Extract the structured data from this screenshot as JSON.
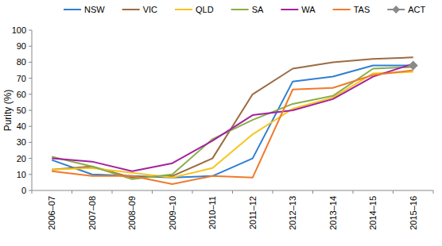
{
  "chart_data": {
    "type": "line",
    "y_label": "Purity (%)",
    "categories": [
      "2006–07",
      "2007–08",
      "2008–09",
      "2009–10",
      "2010–11",
      "2011–12",
      "2012–13",
      "2013–14",
      "2014–15",
      "2015–16"
    ],
    "series": [
      {
        "name": "NSW",
        "color": "#2e7fd4",
        "values": [
          19,
          10,
          9,
          8,
          9,
          20,
          68,
          71,
          78,
          78
        ]
      },
      {
        "name": "VIC",
        "color": "#9c6b43",
        "values": [
          13,
          15,
          8,
          9,
          20,
          60,
          76,
          80,
          82,
          83
        ]
      },
      {
        "name": "QLD",
        "color": "#f7c51b",
        "values": [
          13,
          14,
          11,
          8,
          14,
          35,
          51,
          58,
          73,
          74
        ]
      },
      {
        "name": "SA",
        "color": "#8aae47",
        "values": [
          21,
          15,
          7,
          10,
          32,
          44,
          54,
          59,
          76,
          77
        ]
      },
      {
        "name": "WA",
        "color": "#a3229f",
        "values": [
          20,
          18,
          12,
          17,
          31,
          47,
          50,
          57,
          71,
          79
        ]
      },
      {
        "name": "TAS",
        "color": "#f07a2c",
        "values": [
          12,
          9,
          9,
          4,
          9,
          8,
          63,
          64,
          72,
          75
        ]
      },
      {
        "name": "ACT",
        "color": "#8a8a8a",
        "marker": "diamond",
        "values": [
          null,
          null,
          null,
          null,
          null,
          null,
          null,
          null,
          null,
          78
        ]
      }
    ],
    "ylim": [
      0,
      100
    ],
    "yticks": [
      0,
      10,
      20,
      30,
      40,
      50,
      60,
      70,
      80,
      90,
      100
    ],
    "grid": false,
    "legend": "top"
  }
}
